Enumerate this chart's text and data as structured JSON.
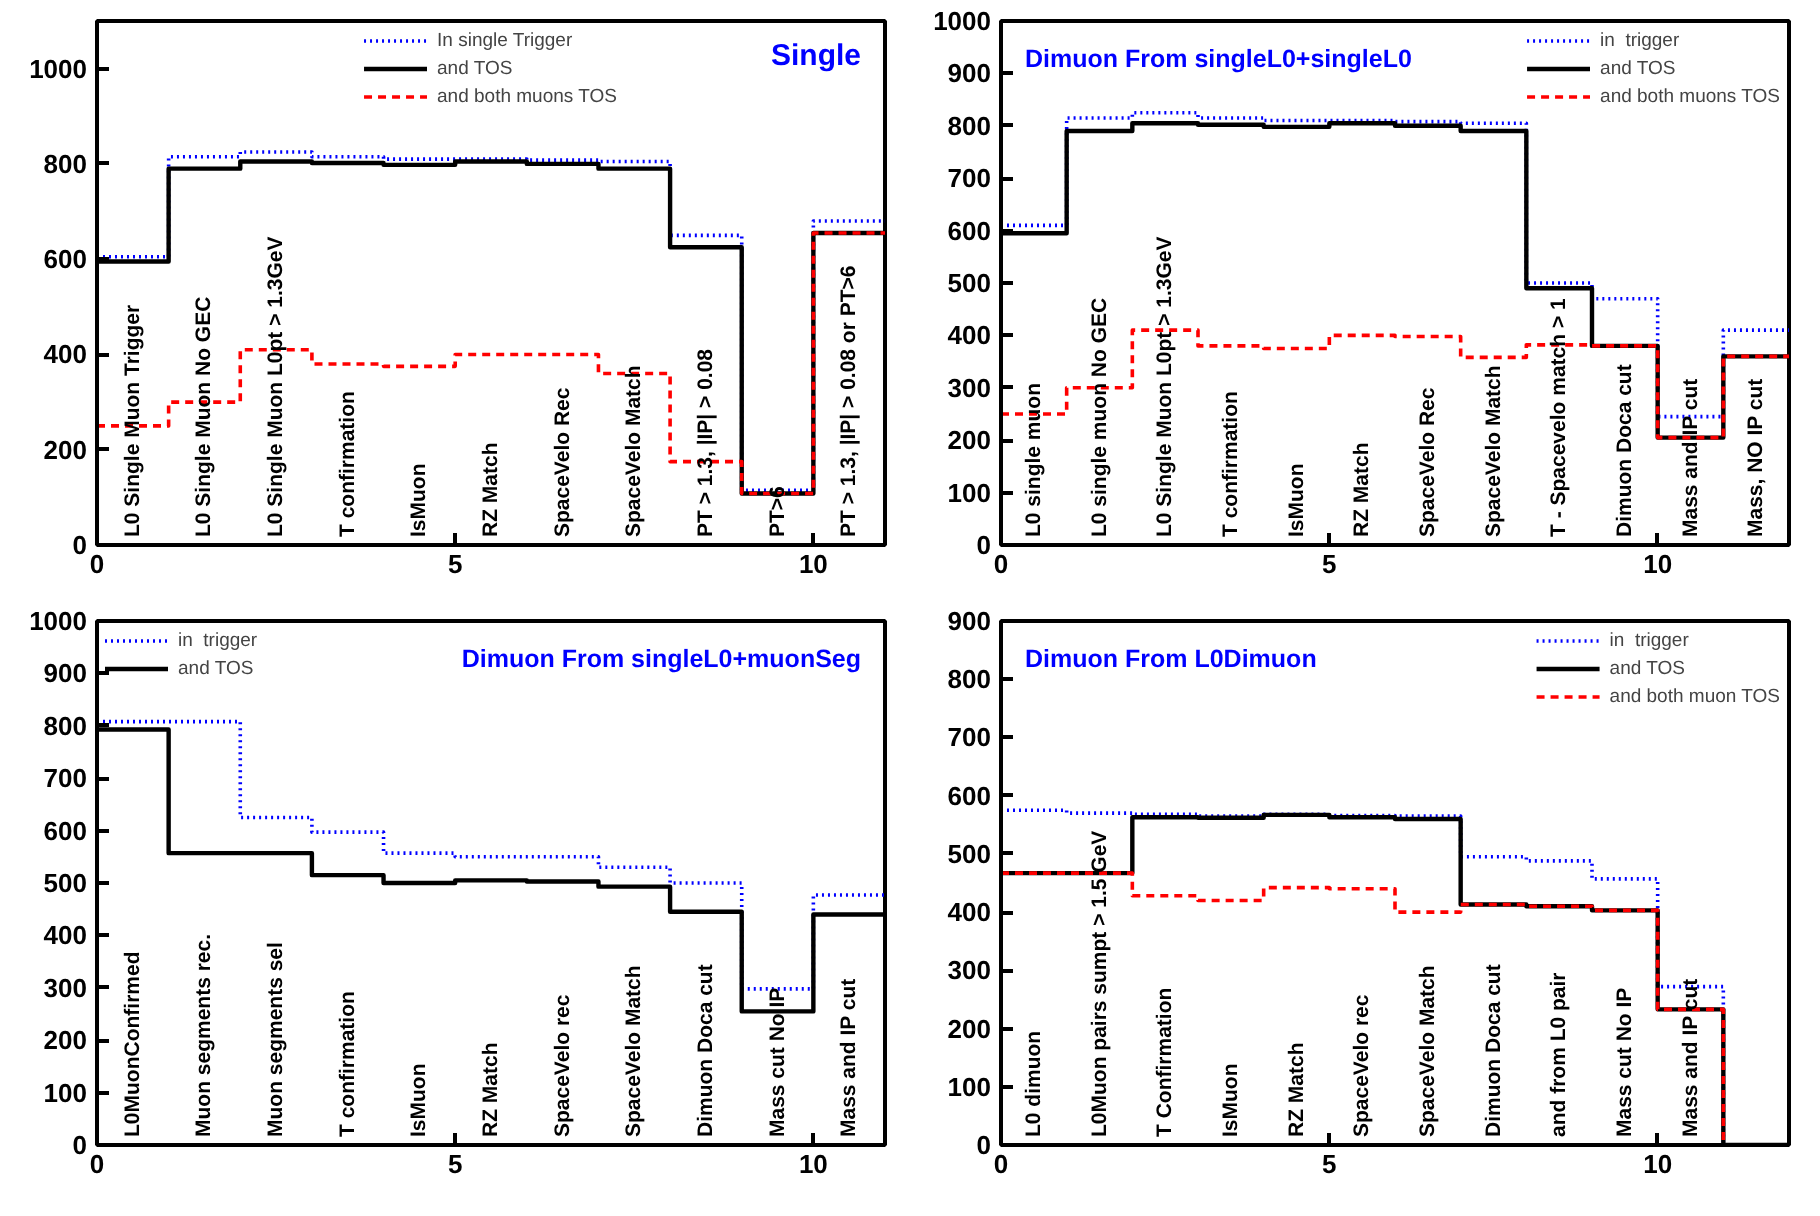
{
  "chart_data": [
    {
      "type": "histogram",
      "title": "Single",
      "bins": [
        0,
        1,
        2,
        3,
        4,
        5,
        6,
        7,
        8,
        9,
        10,
        11
      ],
      "xlim": [
        0,
        11
      ],
      "xticks": [
        0,
        5,
        10
      ],
      "ylim": [
        0,
        1100
      ],
      "yticks": [
        0,
        200,
        400,
        600,
        800,
        1000
      ],
      "legend": "top",
      "grid": false,
      "series": [
        {
          "name": "In single Trigger",
          "color": "#0000ff",
          "line_style": "dotted",
          "values": [
            605,
            815,
            825,
            815,
            810,
            810,
            808,
            805,
            650,
            115,
            680
          ]
        },
        {
          "name": "and TOS",
          "color": "#000000",
          "line_style": "solid",
          "values": [
            595,
            790,
            805,
            802,
            798,
            805,
            800,
            790,
            625,
            108,
            655
          ]
        },
        {
          "name": "and both muons TOS",
          "color": "#ff0000",
          "line_style": "dashed",
          "values": [
            250,
            300,
            410,
            380,
            375,
            400,
            400,
            360,
            175,
            108,
            655
          ]
        }
      ],
      "annotations": [
        "L0 Single Muon Trigger",
        "L0 Single Muon No GEC",
        "L0 Single Muon L0pt > 1.3GeV",
        "T confirmation",
        "IsMuon",
        "RZ Match",
        "SpaceVelo Rec",
        "SpaceVelo Match",
        "PT > 1.3, |IP| > 0.08",
        "PT>6",
        "PT > 1.3, |IP| > 0.08 or PT>6"
      ]
    },
    {
      "type": "histogram",
      "title": "Dimuon From singleL0+singleL0",
      "bins": [
        0,
        1,
        2,
        3,
        4,
        5,
        6,
        7,
        8,
        9,
        10,
        11,
        12
      ],
      "xlim": [
        0,
        12
      ],
      "xticks": [
        0,
        5,
        10
      ],
      "ylim": [
        0,
        1000
      ],
      "yticks": [
        0,
        100,
        200,
        300,
        400,
        500,
        600,
        700,
        800,
        900,
        1000
      ],
      "legend": "top right",
      "grid": false,
      "series": [
        {
          "name": "in  trigger",
          "color": "#0000ff",
          "line_style": "dotted",
          "values": [
            610,
            815,
            825,
            815,
            810,
            810,
            808,
            805,
            500,
            470,
            245,
            410
          ]
        },
        {
          "name": "and TOS",
          "color": "#000000",
          "line_style": "solid",
          "values": [
            595,
            790,
            805,
            802,
            798,
            805,
            800,
            790,
            490,
            380,
            205,
            360
          ]
        },
        {
          "name": "and both muons TOS",
          "color": "#ff0000",
          "line_style": "dashed",
          "values": [
            250,
            300,
            410,
            380,
            375,
            400,
            398,
            358,
            382,
            380,
            205,
            360
          ]
        }
      ],
      "annotations": [
        "L0 single muon",
        "L0 single muon No GEC",
        "L0 Single Muon L0pt > 1.3GeV",
        "T confirmation",
        "IsMuon",
        "RZ Match",
        "SpaceVelo Rec",
        "SpaceVelo Match",
        "T - Spacevelo match > 1",
        "Dimuon Doca cut",
        "Mass and IP cut",
        "Mass, NO  IP cut"
      ]
    },
    {
      "type": "histogram",
      "title": "Dimuon From singleL0+muonSeg",
      "bins": [
        0,
        1,
        2,
        3,
        4,
        5,
        6,
        7,
        8,
        9,
        10,
        11
      ],
      "xlim": [
        0,
        11
      ],
      "xticks": [
        0,
        5,
        10
      ],
      "ylim": [
        0,
        1000
      ],
      "yticks": [
        0,
        100,
        200,
        300,
        400,
        500,
        600,
        700,
        800,
        900,
        1000
      ],
      "legend": "top left",
      "grid": false,
      "series": [
        {
          "name": "in  trigger",
          "color": "#0000ff",
          "line_style": "dotted",
          "values": [
            808,
            808,
            625,
            597,
            557,
            550,
            550,
            530,
            500,
            298,
            477
          ]
        },
        {
          "name": "and TOS",
          "color": "#000000",
          "line_style": "solid",
          "values": [
            793,
            557,
            557,
            515,
            500,
            505,
            503,
            493,
            445,
            255,
            440
          ]
        }
      ],
      "annotations": [
        "L0MuonConfirmed",
        "Muon segments rec.",
        "Muon segments sel",
        "T confirmation",
        "IsMuon",
        "RZ Match",
        "SpaceVelo rec",
        "SpaceVelo Match",
        "Dimuon Doca cut",
        "Mass cut No IP",
        "Mass and IP cut"
      ]
    },
    {
      "type": "histogram",
      "title": "Dimuon From L0Dimuon",
      "bins": [
        0,
        1,
        2,
        3,
        4,
        5,
        6,
        7,
        8,
        9,
        10,
        11,
        12
      ],
      "xlim": [
        0,
        12
      ],
      "xticks": [
        0,
        5,
        10
      ],
      "ylim": [
        0,
        900
      ],
      "yticks": [
        0,
        100,
        200,
        300,
        400,
        500,
        600,
        700,
        800,
        900
      ],
      "legend": "top right",
      "grid": false,
      "series": [
        {
          "name": "in  trigger",
          "color": "#0000ff",
          "line_style": "dotted",
          "values": [
            575,
            570,
            568,
            565,
            568,
            566,
            565,
            495,
            488,
            457,
            272,
            0
          ]
        },
        {
          "name": "and TOS",
          "color": "#000000",
          "line_style": "solid",
          "values": [
            467,
            467,
            563,
            562,
            567,
            563,
            560,
            413,
            410,
            403,
            233,
            0
          ]
        },
        {
          "name": "and both muon TOS",
          "color": "#ff0000",
          "line_style": "dashed",
          "values": [
            467,
            467,
            428,
            420,
            442,
            440,
            400,
            413,
            410,
            403,
            233,
            0
          ]
        }
      ],
      "annotations": [
        "L0 dimuon",
        "L0Muon pairs sumpt > 1.5 GeV",
        "T Confirmation",
        "IsMuon",
        "RZ Match",
        "SpaceVelo rec",
        "SpaceVelo Match",
        "Dimuon Doca cut",
        "and from L0 pair",
        "Mass cut No IP",
        "Mass and IP cut"
      ]
    }
  ]
}
